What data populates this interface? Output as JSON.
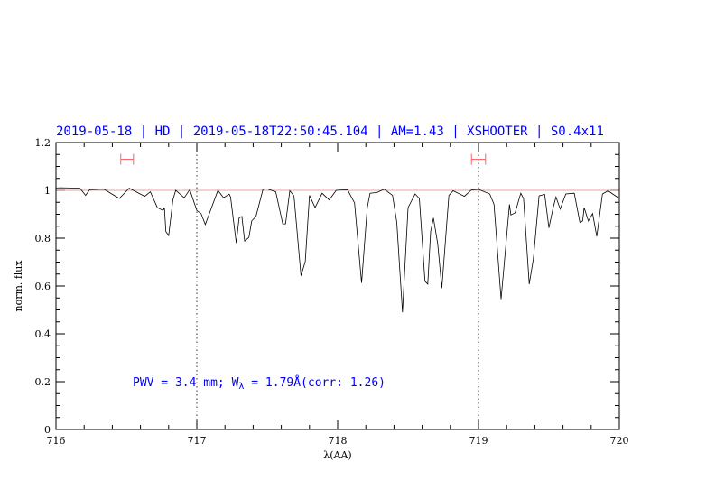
{
  "chart_data": {
    "type": "line",
    "title": "2019-05-18 | HD | 2019-05-18T22:50:45.104 | AM=1.43 | XSHOOTER | S0.4x11",
    "xlabel": "λ(AA)",
    "ylabel": "norm. flux",
    "xlim": [
      716,
      720
    ],
    "ylim": [
      0,
      1.2
    ],
    "xticks": [
      "716",
      "717",
      "718",
      "719",
      "720"
    ],
    "yticks": [
      "0",
      "0.2",
      "0.4",
      "0.6",
      "0.8",
      "1",
      "1.2"
    ],
    "grid": false,
    "reference_line": 1.0,
    "dotted_verticals": [
      717,
      719
    ],
    "intervals": [
      {
        "from": 716.46,
        "to": 716.55,
        "y": 1.13
      },
      {
        "from": 718.95,
        "to": 719.05,
        "y": 1.13
      }
    ],
    "annotation": {
      "prefix": "PWV = 3.4 mm; W",
      "subscript": "λ",
      "suffix": " = 1.79Å(corr: 1.26)"
    },
    "colors": {
      "spectrum": "#000000",
      "reference": "#e08080",
      "interval": "#ff6060",
      "text": "#0000ff"
    },
    "series": [
      {
        "x": [
          716.0,
          716.03,
          716.17,
          716.21,
          716.24,
          716.34,
          716.45,
          716.52,
          716.63,
          716.67,
          716.72,
          716.76,
          716.77,
          716.78,
          716.8,
          716.83,
          716.85,
          716.91,
          716.95,
          717.0,
          717.03,
          717.06,
          717.15,
          717.19,
          717.23,
          717.24,
          717.28,
          717.3,
          717.32,
          717.34,
          717.37,
          717.39,
          717.42,
          717.47,
          717.5,
          717.56,
          717.61,
          717.63,
          717.66,
          717.69,
          717.74,
          717.77,
          717.8,
          717.84,
          717.89,
          717.94,
          717.99,
          718.07,
          718.12,
          718.17,
          718.21,
          718.23,
          718.28,
          718.33,
          718.39,
          718.42,
          718.46,
          718.5,
          718.55,
          718.58,
          718.62,
          718.64,
          718.66,
          718.68,
          718.71,
          718.74,
          718.79,
          718.82,
          718.9,
          718.95,
          719.0,
          719.08,
          719.11,
          719.16,
          719.19,
          719.22,
          719.23,
          719.26,
          719.3,
          719.32,
          719.36,
          719.39,
          719.43,
          719.47,
          719.5,
          719.53,
          719.55,
          719.58,
          719.62,
          719.68,
          719.72,
          719.74,
          719.75,
          719.78,
          719.81,
          719.84,
          719.88,
          719.92,
          720.0
        ],
        "y": [
          1.01,
          1.011,
          1.009,
          0.979,
          1.003,
          1.005,
          0.966,
          1.009,
          0.975,
          0.994,
          0.928,
          0.916,
          0.928,
          0.828,
          0.811,
          0.96,
          1.0,
          0.969,
          1.003,
          0.916,
          0.903,
          0.857,
          1.0,
          0.969,
          0.984,
          0.972,
          0.78,
          0.884,
          0.891,
          0.788,
          0.803,
          0.872,
          0.891,
          1.004,
          1.006,
          0.994,
          0.86,
          0.86,
          0.998,
          0.977,
          0.643,
          0.702,
          0.979,
          0.928,
          0.988,
          0.96,
          1.0,
          1.003,
          0.947,
          0.613,
          0.928,
          0.988,
          0.991,
          1.005,
          0.979,
          0.866,
          0.49,
          0.928,
          0.985,
          0.966,
          0.62,
          0.608,
          0.828,
          0.884,
          0.777,
          0.591,
          0.979,
          0.998,
          0.975,
          1.002,
          1.004,
          0.985,
          0.941,
          0.545,
          0.74,
          0.941,
          0.897,
          0.906,
          0.988,
          0.966,
          0.608,
          0.714,
          0.977,
          0.983,
          0.843,
          0.928,
          0.972,
          0.922,
          0.985,
          0.988,
          0.866,
          0.872,
          0.928,
          0.872,
          0.903,
          0.807,
          0.985,
          0.998,
          0.966
        ]
      }
    ]
  }
}
